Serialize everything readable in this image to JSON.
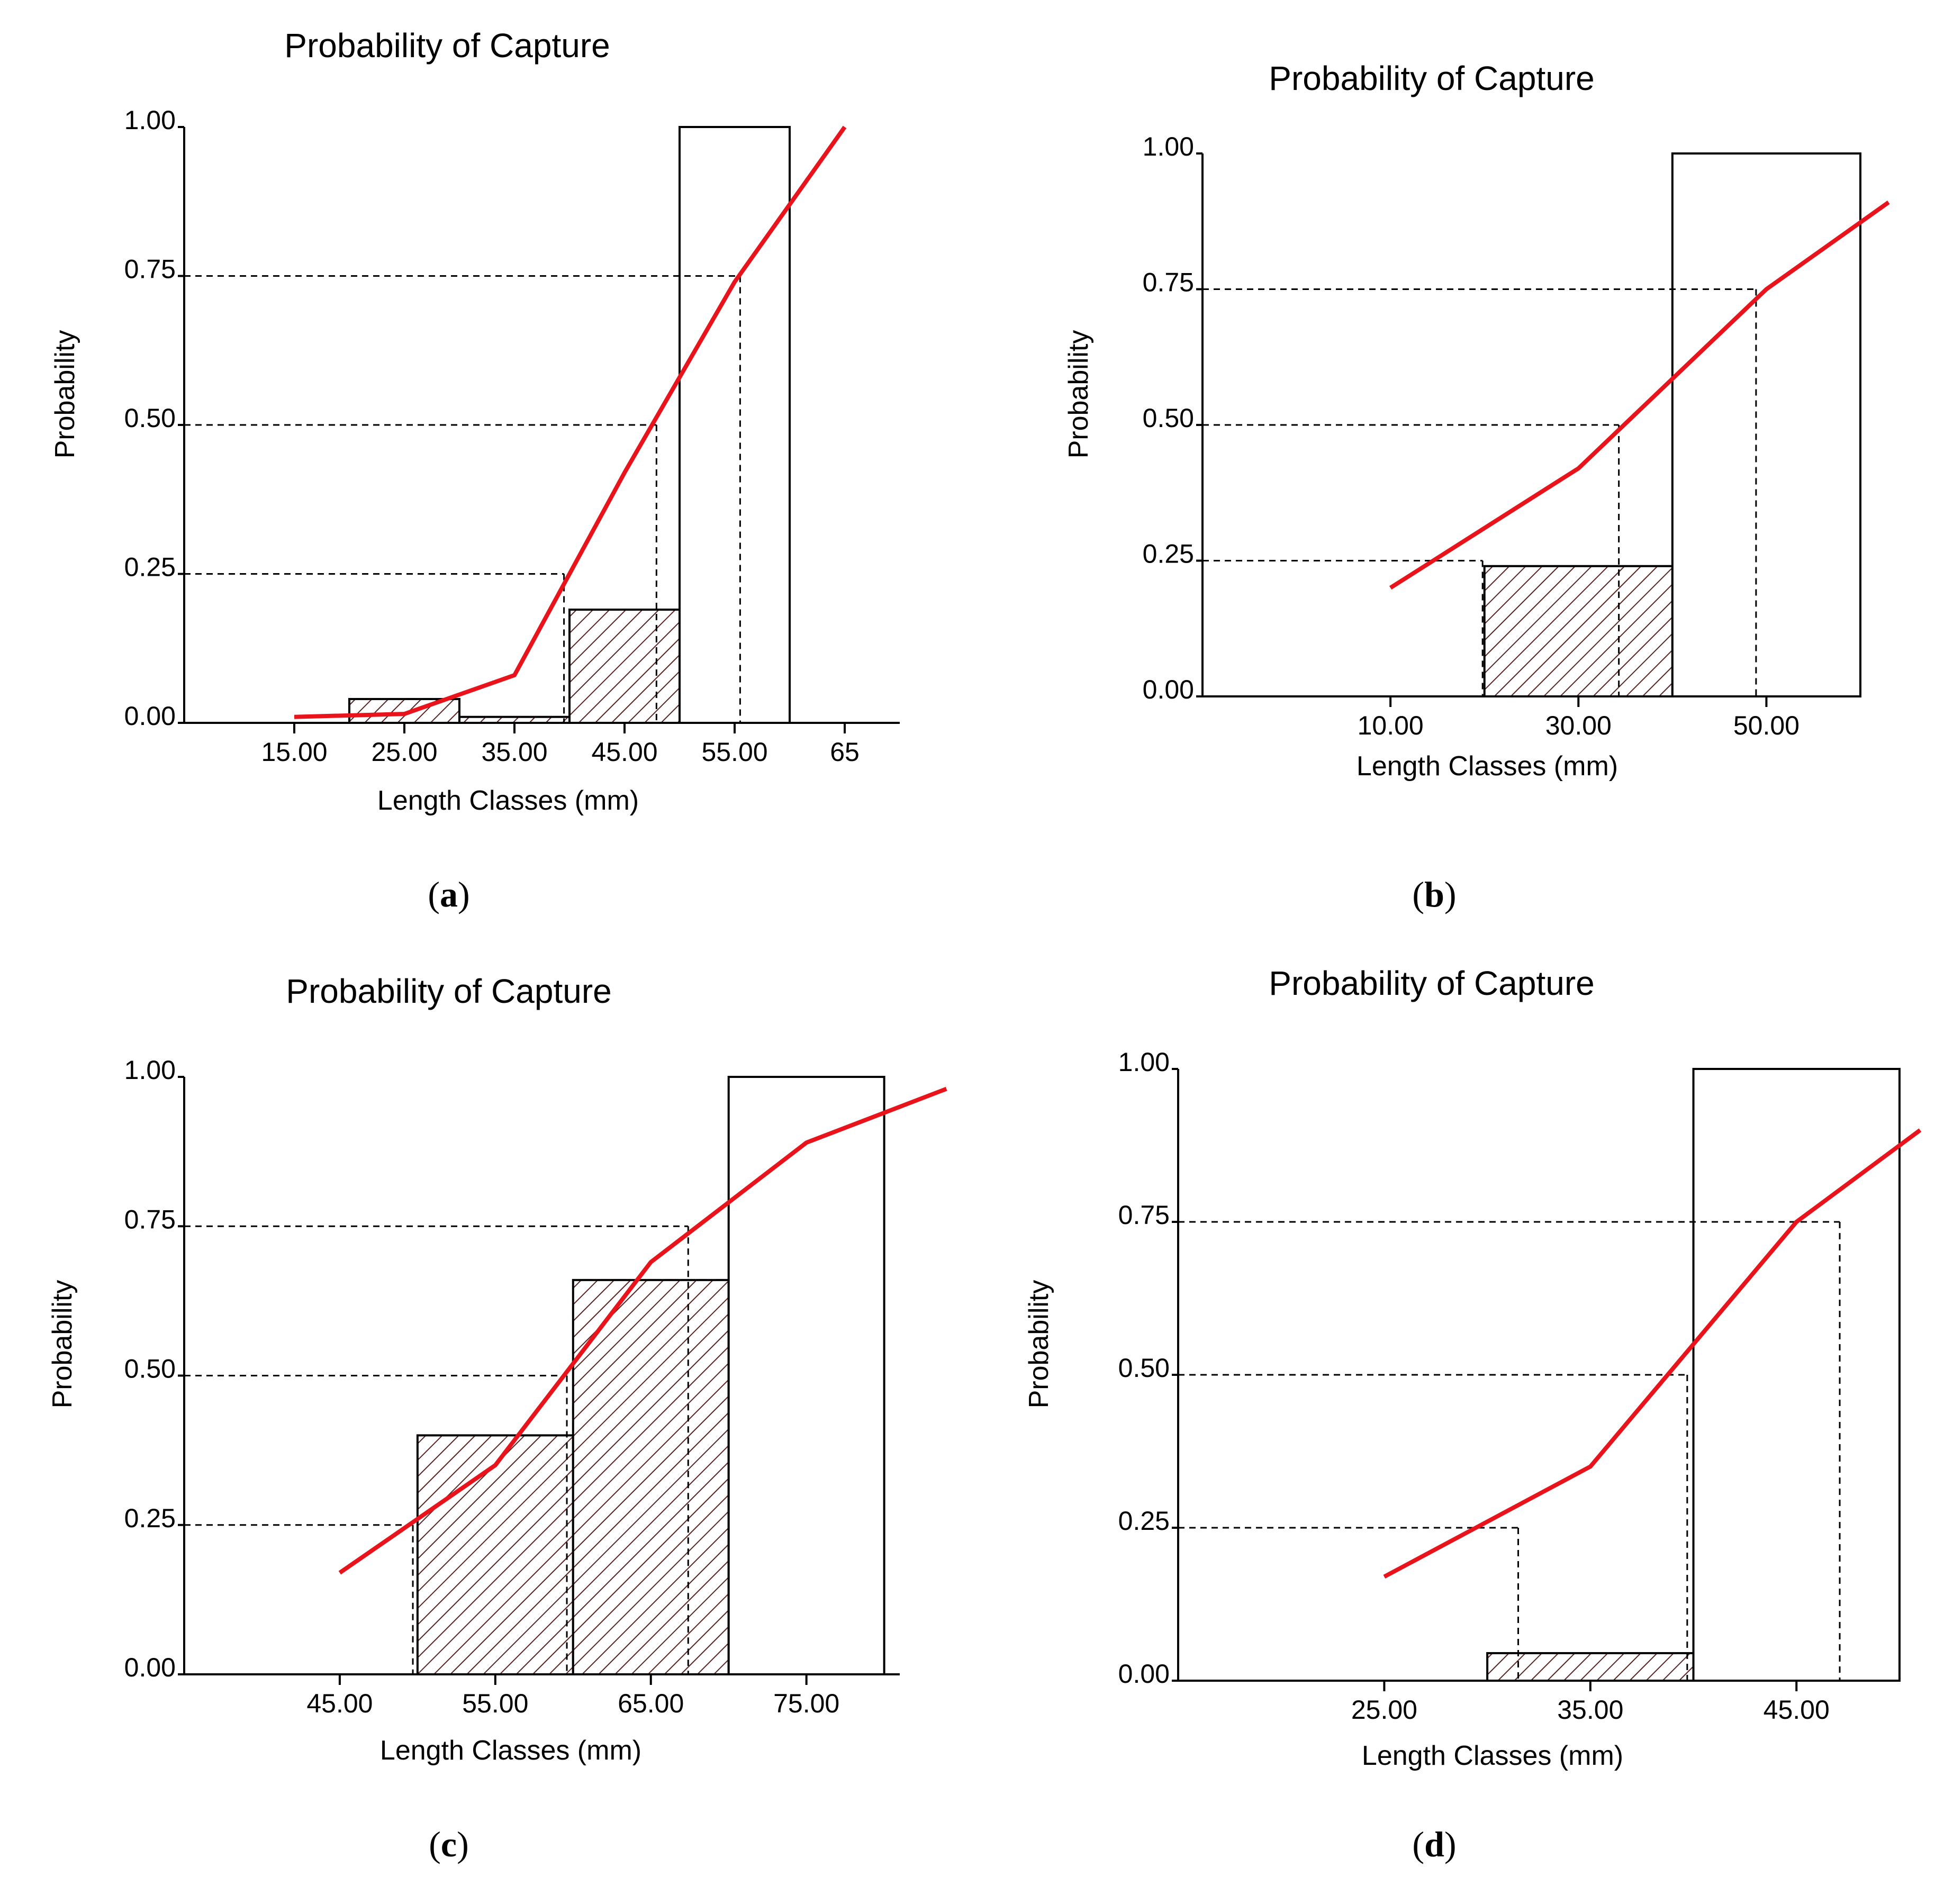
{
  "chart_data": [
    {
      "type": "bar",
      "panel": "a",
      "title": "Probability of Capture",
      "xlabel": "Length Classes (mm)",
      "ylabel": "Probability",
      "xticks": [
        "15.00",
        "25.00",
        "35.00",
        "45.00",
        "55.00",
        "65"
      ],
      "yticks": [
        "0.00",
        "0.25",
        "0.50",
        "0.75",
        "1.00"
      ],
      "xlim": [
        5,
        70
      ],
      "ylim": [
        0,
        1
      ],
      "bars": [
        {
          "x0": 20,
          "x1": 30,
          "value": 0.04,
          "hatched": true
        },
        {
          "x0": 30,
          "x1": 40,
          "value": 0.01,
          "hatched": true
        },
        {
          "x0": 40,
          "x1": 50,
          "value": 0.19,
          "hatched": true
        },
        {
          "x0": 50,
          "x1": 60,
          "value": 1.0,
          "hatched": false
        }
      ],
      "curve": [
        [
          15,
          0.01
        ],
        [
          25,
          0.015
        ],
        [
          35,
          0.08
        ],
        [
          45,
          0.42
        ],
        [
          55,
          0.74
        ],
        [
          65,
          1.0
        ]
      ],
      "reference_x": [
        39.5,
        47.9,
        55.5
      ]
    },
    {
      "type": "bar",
      "panel": "b",
      "title": "Probability of Capture",
      "xlabel": "Length Classes (mm)",
      "ylabel": "Probability",
      "xticks": [
        "10.00",
        "30.00",
        "50.00"
      ],
      "yticks": [
        "0.00",
        "0.25",
        "0.50",
        "0.75",
        "1.00"
      ],
      "xlim": [
        -10,
        60
      ],
      "ylim": [
        0,
        1
      ],
      "bars": [
        {
          "x0": 20,
          "x1": 40,
          "value": 0.24,
          "hatched": true
        },
        {
          "x0": 40,
          "x1": 60,
          "value": 1.0,
          "hatched": false
        }
      ],
      "curve": [
        [
          10,
          0.2
        ],
        [
          30,
          0.42
        ],
        [
          50,
          0.75
        ],
        [
          63,
          0.91
        ]
      ],
      "reference_x": [
        19.8,
        34.3,
        48.9
      ]
    },
    {
      "type": "bar",
      "panel": "c",
      "title": "Probability of Capture",
      "xlabel": "Length Classes (mm)",
      "ylabel": "Probability",
      "xticks": [
        "45.00",
        "55.00",
        "65.00",
        "75.00"
      ],
      "yticks": [
        "0.00",
        "0.25",
        "0.50",
        "0.75",
        "1.00"
      ],
      "xlim": [
        35,
        81
      ],
      "ylim": [
        0,
        1
      ],
      "bars": [
        {
          "x0": 50,
          "x1": 60,
          "value": 0.4,
          "hatched": true
        },
        {
          "x0": 60,
          "x1": 70,
          "value": 0.66,
          "hatched": true
        },
        {
          "x0": 70,
          "x1": 80,
          "value": 1.0,
          "hatched": false
        }
      ],
      "curve": [
        [
          45,
          0.17
        ],
        [
          55,
          0.35
        ],
        [
          65,
          0.69
        ],
        [
          75,
          0.89
        ],
        [
          84,
          0.98
        ]
      ],
      "reference_x": [
        49.7,
        59.6,
        67.4
      ]
    },
    {
      "type": "bar",
      "panel": "d",
      "title": "Probability of Capture",
      "xlabel": "Length Classes (mm)",
      "ylabel": "Probability",
      "xticks": [
        "25.00",
        "35.00",
        "45.00"
      ],
      "yticks": [
        "0.00",
        "0.25",
        "0.50",
        "0.75",
        "1.00"
      ],
      "xlim": [
        15,
        49
      ],
      "ylim": [
        0,
        1
      ],
      "bars": [
        {
          "x0": 30,
          "x1": 40,
          "value": 0.045,
          "hatched": true
        },
        {
          "x0": 40,
          "x1": 50,
          "value": 1.0,
          "hatched": false
        }
      ],
      "curve": [
        [
          25,
          0.17
        ],
        [
          35,
          0.35
        ],
        [
          45,
          0.75
        ],
        [
          51,
          0.9
        ]
      ],
      "reference_x": [
        31.5,
        39.7,
        47.1
      ]
    }
  ],
  "captions": [
    "(a)",
    "(b)",
    "(c)",
    "(d)"
  ],
  "colors": {
    "curve": "#e8131b",
    "hatch": "#5a2323",
    "axis": "#000000"
  }
}
